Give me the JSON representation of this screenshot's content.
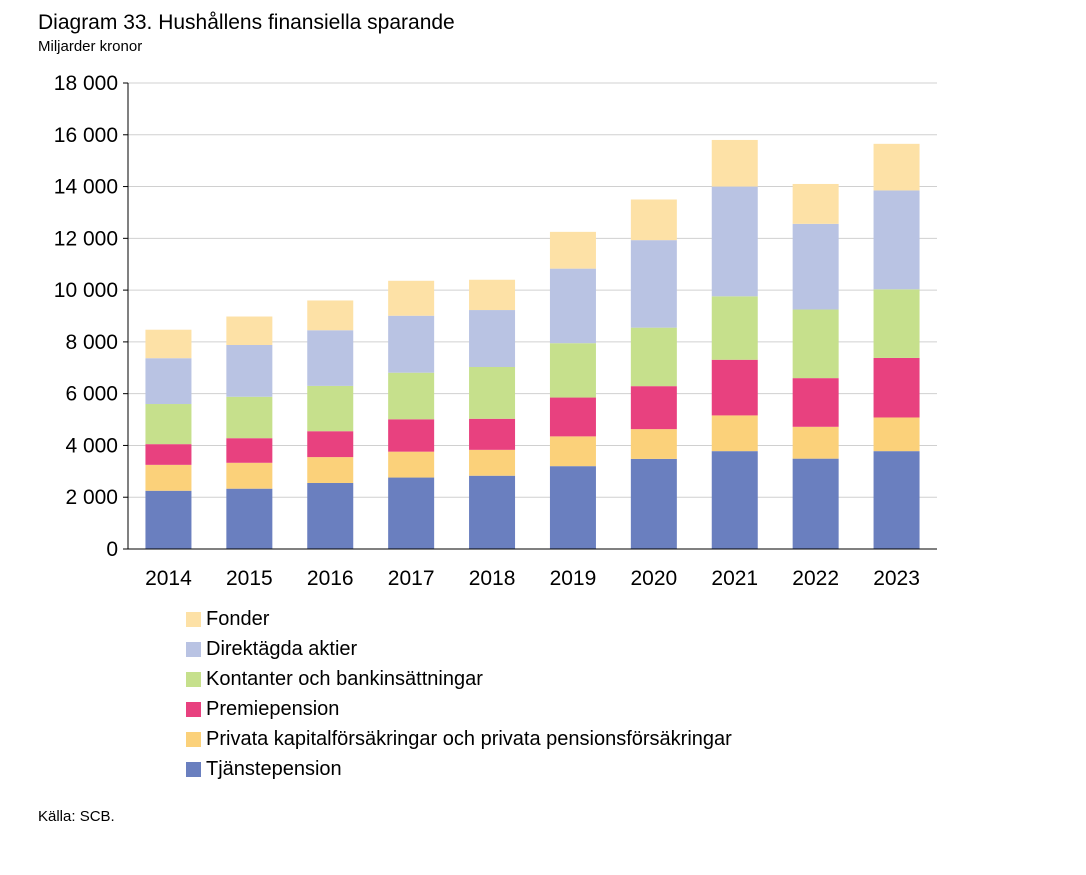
{
  "header": {
    "title": "Diagram 33. Hushållens finansiella sparande",
    "subtitle": "Miljarder kronor"
  },
  "footer": {
    "source": "Källa: SCB."
  },
  "chart_data": {
    "type": "bar",
    "stacked": true,
    "title": "Diagram 33. Hushållens finansiella sparande",
    "ylabel": "Miljarder kronor",
    "xlabel": "",
    "ylim": [
      0,
      18000
    ],
    "yticks": [
      0,
      2000,
      4000,
      6000,
      8000,
      10000,
      12000,
      14000,
      16000,
      18000
    ],
    "ytick_labels": [
      "0",
      "2 000",
      "4 000",
      "6 000",
      "8 000",
      "10 000",
      "12 000",
      "14 000",
      "16 000",
      "18 000"
    ],
    "grid": true,
    "legend_position": "bottom",
    "categories": [
      "2014",
      "2015",
      "2016",
      "2017",
      "2018",
      "2019",
      "2020",
      "2021",
      "2022",
      "2023"
    ],
    "series": [
      {
        "name": "Tjänstepension",
        "color": "#6a7fbf",
        "values": [
          2250,
          2330,
          2550,
          2760,
          2830,
          3200,
          3480,
          3780,
          3490,
          3780
        ]
      },
      {
        "name": "Privata kapitalförsäkringar och privata pensionsförsäkringar",
        "color": "#fbd17a",
        "values": [
          1000,
          1000,
          1000,
          1000,
          1000,
          1150,
          1150,
          1380,
          1230,
          1300
        ]
      },
      {
        "name": "Premiepension",
        "color": "#e8417f",
        "values": [
          800,
          950,
          1000,
          1250,
          1200,
          1500,
          1660,
          2150,
          1880,
          2300
        ]
      },
      {
        "name": "Kontanter och bankinsättningar",
        "color": "#c6e08c",
        "values": [
          1550,
          1600,
          1750,
          1800,
          2000,
          2100,
          2260,
          2450,
          2650,
          2650
        ]
      },
      {
        "name": "Direktägda aktier",
        "color": "#b9c3e3",
        "values": [
          1770,
          2000,
          2150,
          2200,
          2200,
          2880,
          3380,
          4240,
          3310,
          3820
        ]
      },
      {
        "name": "Fonder",
        "color": "#fde1a6",
        "values": [
          1100,
          1100,
          1150,
          1350,
          1170,
          1420,
          1570,
          1800,
          1540,
          1800
        ]
      }
    ],
    "legend_order": [
      "Fonder",
      "Direktägda aktier",
      "Kontanter och bankinsättningar",
      "Premiepension",
      "Privata kapitalförsäkringar och privata pensionsförsäkringar",
      "Tjänstepension"
    ]
  }
}
